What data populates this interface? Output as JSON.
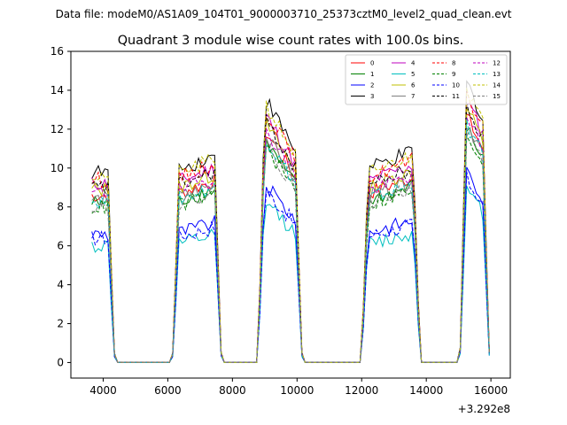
{
  "chart_data": {
    "type": "line",
    "suptitle": "Data file: modeM0/AS1A09_104T01_9000003710_25373cztM0_level2_quad_clean.evt",
    "title": "Quadrant 3 module wise count rates with 100.0s bins.",
    "xlabel": "",
    "ylabel": "",
    "x_offset_label": "+3.292e8",
    "xlim": [
      3000,
      16600
    ],
    "ylim": [
      -0.8,
      16
    ],
    "xticks": [
      4000,
      6000,
      8000,
      10000,
      12000,
      14000,
      16000
    ],
    "yticks": [
      0,
      2,
      4,
      6,
      8,
      10,
      12,
      14,
      16
    ],
    "grid": false,
    "legend_position": "top-right",
    "legend_columns": 4,
    "segments": [
      {
        "start": 3650,
        "end": 4350
      },
      {
        "start": 6150,
        "end": 7650
      },
      {
        "start": 8800,
        "end": 10150
      },
      {
        "start": 12000,
        "end": 13800
      },
      {
        "start": 15050,
        "end": 15950
      }
    ],
    "series": [
      {
        "name": "0",
        "color": "#ff0000",
        "dash": false,
        "level": 8.6
      },
      {
        "name": "1",
        "color": "#008000",
        "dash": false,
        "level": 8.2
      },
      {
        "name": "2",
        "color": "#0000ff",
        "dash": false,
        "level": 6.6
      },
      {
        "name": "3",
        "color": "#000000",
        "dash": false,
        "level": 9.8
      },
      {
        "name": "4",
        "color": "#bf00bf",
        "dash": false,
        "level": 9.2
      },
      {
        "name": "5",
        "color": "#00bfbf",
        "dash": false,
        "level": 6.0
      },
      {
        "name": "6",
        "color": "#bfbf00",
        "dash": false,
        "level": 8.9
      },
      {
        "name": "7",
        "color": "#808080",
        "dash": false,
        "level": 8.4
      },
      {
        "name": "8",
        "color": "#ff0000",
        "dash": true,
        "level": 9.4
      },
      {
        "name": "9",
        "color": "#008000",
        "dash": true,
        "level": 8.0
      },
      {
        "name": "10",
        "color": "#0000ff",
        "dash": true,
        "level": 6.4
      },
      {
        "name": "11",
        "color": "#000000",
        "dash": true,
        "level": 9.0
      },
      {
        "name": "12",
        "color": "#bf00bf",
        "dash": true,
        "level": 8.7
      },
      {
        "name": "13",
        "color": "#00bfbf",
        "dash": true,
        "level": 8.3
      },
      {
        "name": "14",
        "color": "#bfbf00",
        "dash": true,
        "level": 9.6
      },
      {
        "name": "15",
        "color": "#808080",
        "dash": true,
        "level": 8.1
      }
    ]
  }
}
